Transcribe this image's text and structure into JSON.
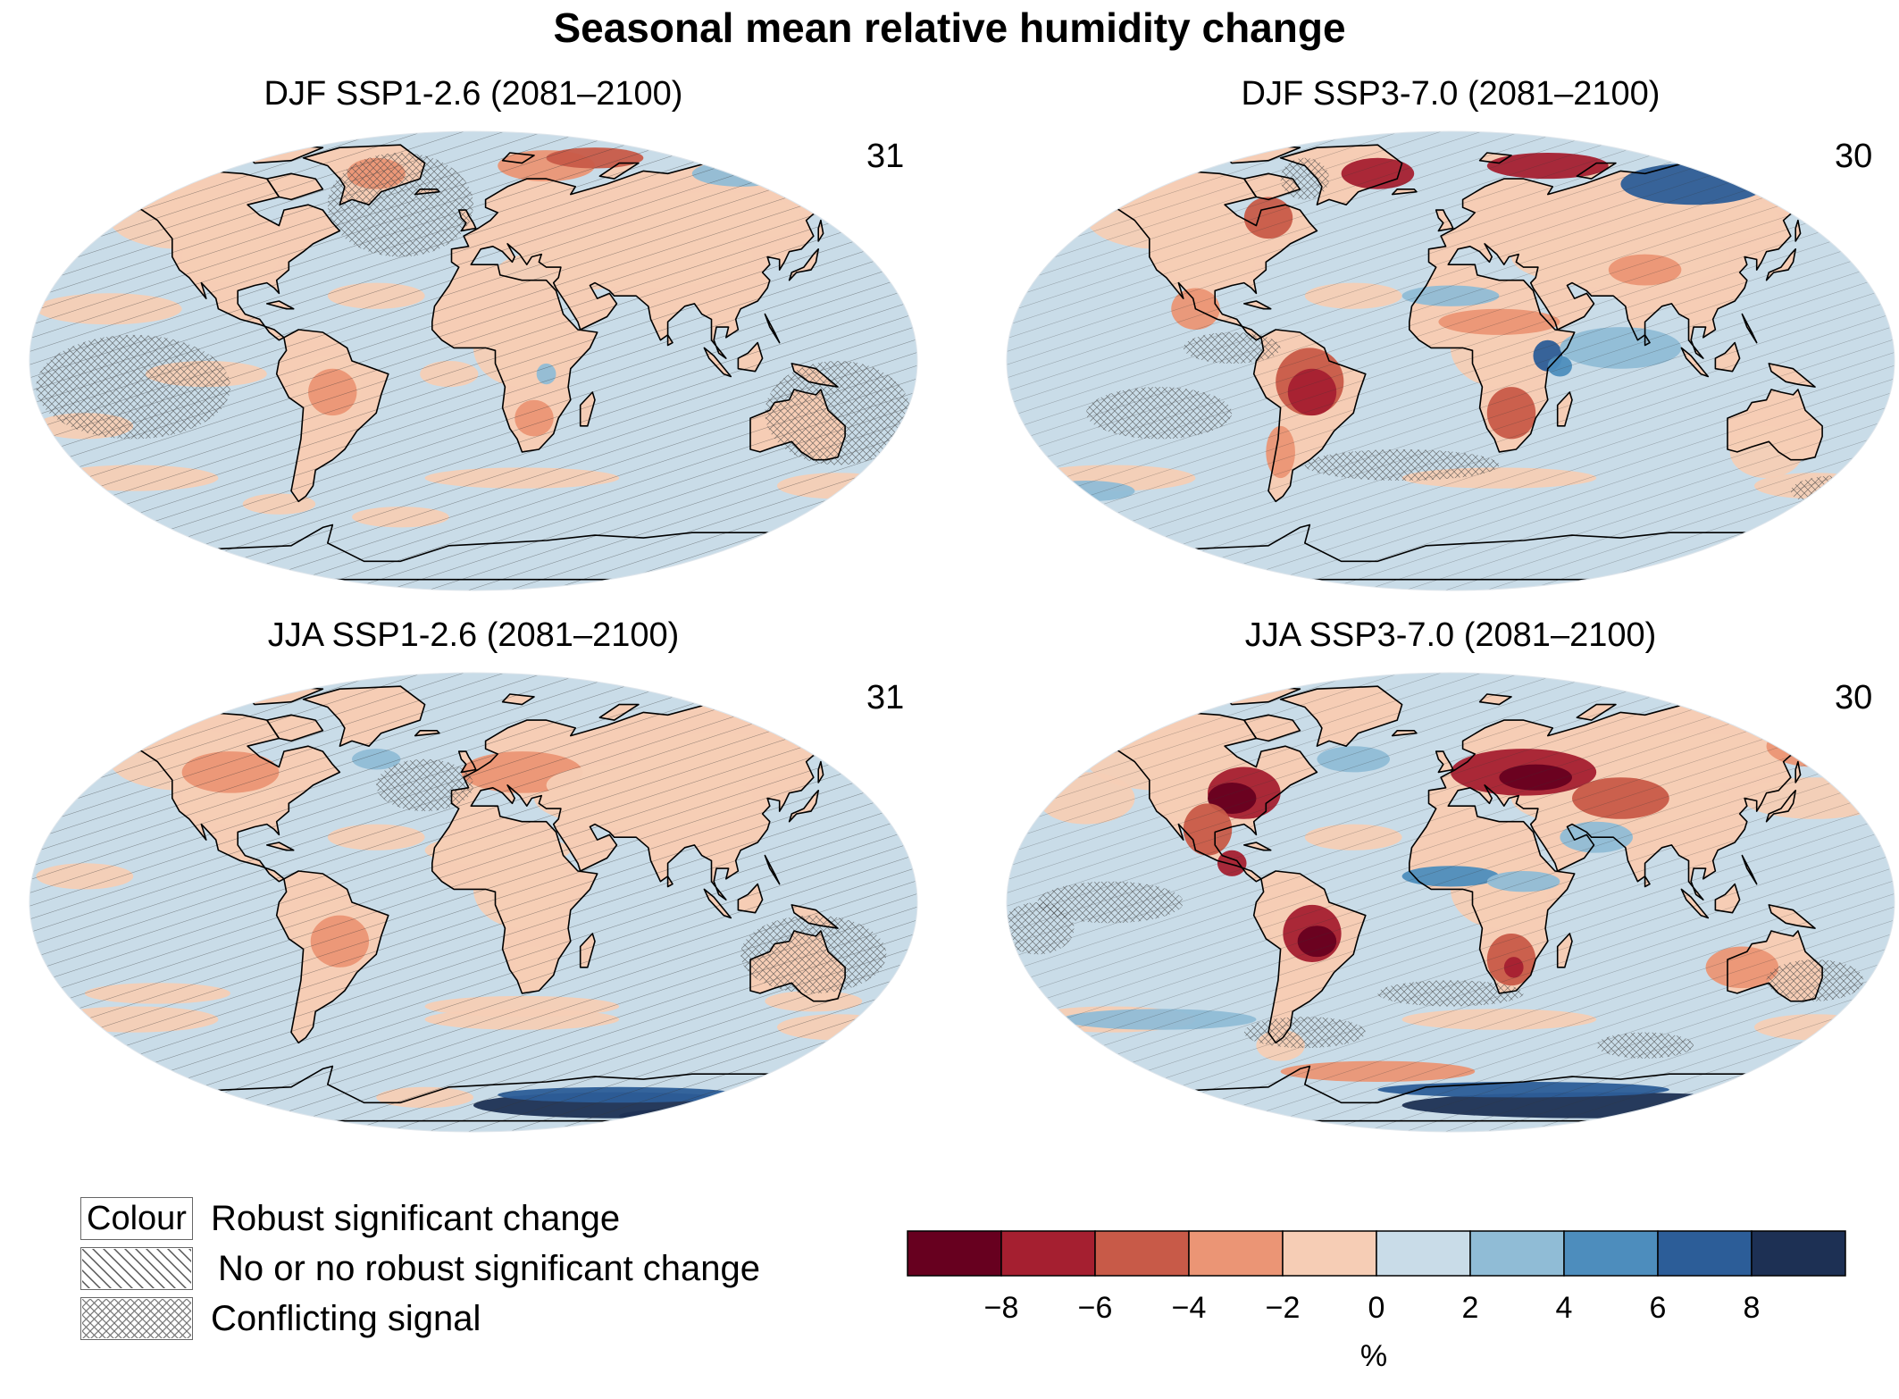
{
  "figure_title": "Seasonal mean relative humidity change",
  "panels": [
    {
      "title": "DJF SSP1-2.6 (2081–2100)",
      "count": "31"
    },
    {
      "title": "DJF SSP3-7.0 (2081–2100)",
      "count": "30"
    },
    {
      "title": "JJA SSP1-2.6 (2081–2100)",
      "count": "31"
    },
    {
      "title": "JJA SSP3-7.0 (2081–2100)",
      "count": "30"
    }
  ],
  "legend": {
    "items": [
      {
        "swatch_text": "Colour",
        "label": "Robust significant change",
        "pattern": "solid"
      },
      {
        "swatch_text": "",
        "label": "No or no robust significant change",
        "pattern": "diagonal-hatch"
      },
      {
        "swatch_text": "",
        "label": "Conflicting signal",
        "pattern": "cross-hatch"
      }
    ]
  },
  "colorbar": {
    "unit": "%",
    "ticks": [
      "−8",
      "−6",
      "−4",
      "−2",
      "0",
      "2",
      "4",
      "6",
      "8"
    ],
    "tick_values": [
      -8,
      -6,
      -4,
      -2,
      0,
      2,
      4,
      6,
      8
    ],
    "bounds": [
      -10,
      -8,
      -6,
      -4,
      -2,
      0,
      2,
      4,
      6,
      8,
      10
    ],
    "colors": [
      "#67001f",
      "#a51f30",
      "#c85a48",
      "#eb9575",
      "#f6cdb5",
      "#c9dce8",
      "#90bcd6",
      "#4d8dbd",
      "#2c5d98",
      "#1d3054"
    ]
  },
  "colors": {
    "ocean_default": "#c9dce8",
    "slight_drying": "#f6cdb5",
    "coastline": "#000000"
  }
}
